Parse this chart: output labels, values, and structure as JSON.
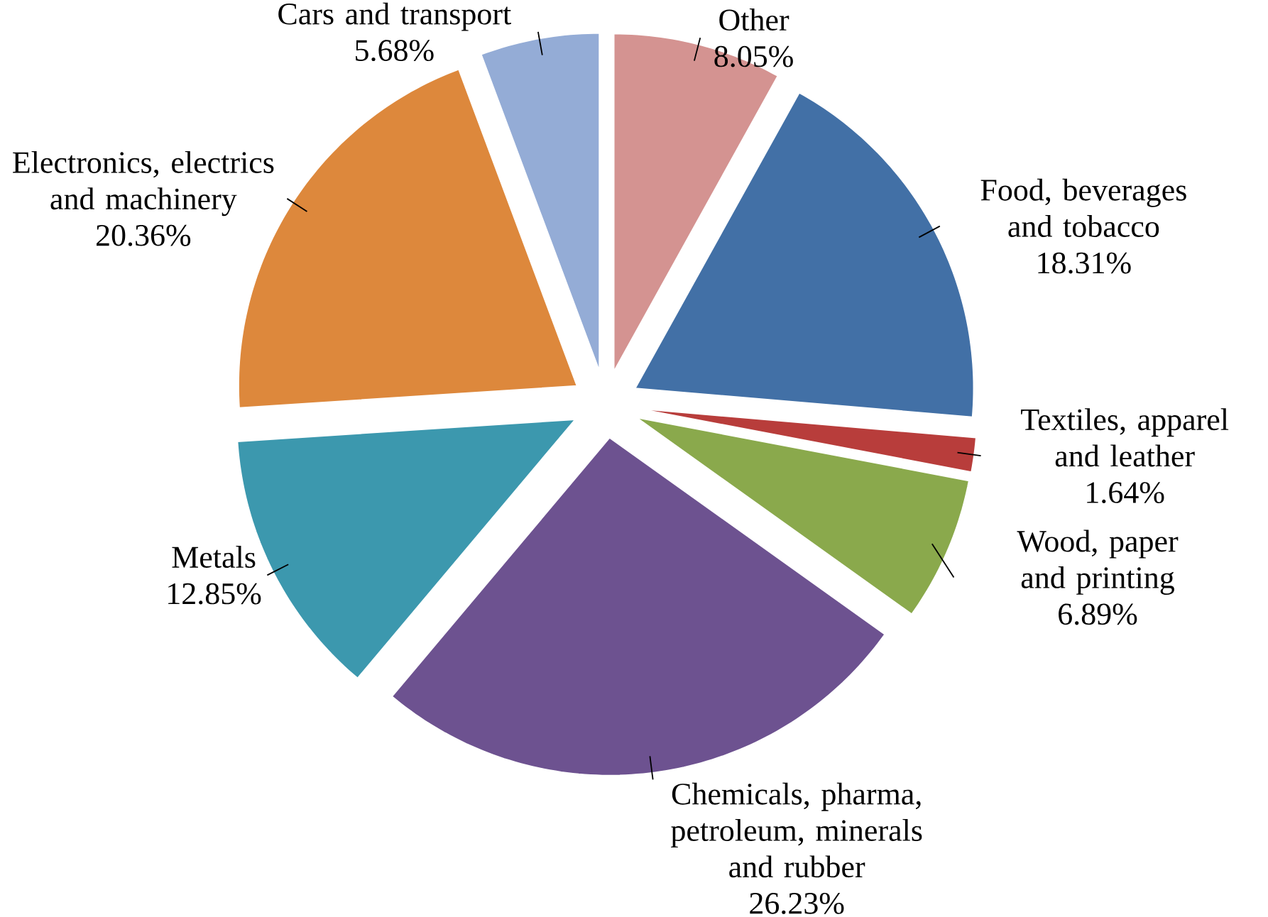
{
  "chart_data": {
    "type": "pie",
    "categories": [
      "Other",
      "Food, beverages and tobacco",
      "Textiles, apparel and leather",
      "Wood, paper and printing",
      "Chemicals, pharma, petroleum, minerals and rubber",
      "Metals",
      "Electronics, electrics and machinery",
      "Cars and transport"
    ],
    "values": [
      8.05,
      18.31,
      1.64,
      6.89,
      26.23,
      12.85,
      20.36,
      5.68
    ],
    "value_labels": [
      "8.05%",
      "18.31%",
      "1.64%",
      "6.89%",
      "26.23%",
      "12.85%",
      "20.36%",
      "5.68%"
    ],
    "colors": [
      "#d49391",
      "#4270a6",
      "#b83d3b",
      "#8aa94c",
      "#6d5290",
      "#3c98ae",
      "#dd883c",
      "#94acd6"
    ]
  }
}
